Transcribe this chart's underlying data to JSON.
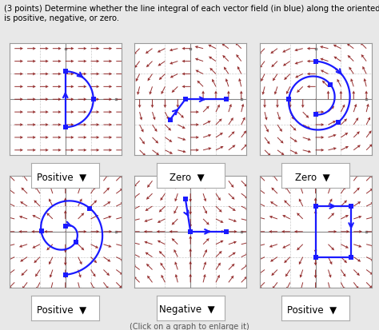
{
  "title_text": "(3 points) Determine whether the line integral of each vector field (in blue) along the oriented path (in red)\nis positive, negative, or zero.",
  "labels_top": [
    "Positive",
    "Zero",
    "Zero"
  ],
  "labels_bot": [
    "Positive",
    "Negative",
    "Positive"
  ],
  "bg_color": "#e8e8e8",
  "panel_bg": "#ffffff",
  "arrow_color": "#8B1A1A",
  "path_color": "#1a1aff",
  "dot_color": "#1a1aff",
  "grid_color": "#cccccc",
  "axis_color": "#888888",
  "spine_color": "#999999"
}
